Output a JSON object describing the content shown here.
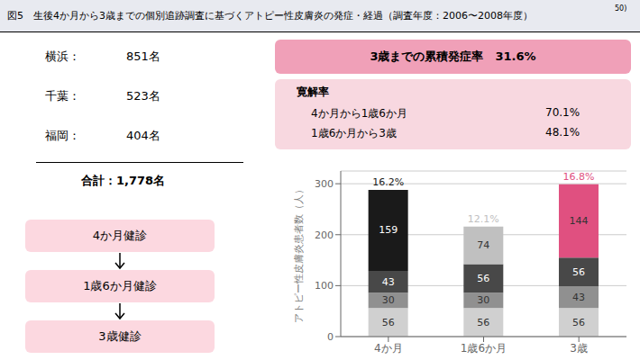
{
  "chart_data": {
    "type": "bar",
    "stacked": true,
    "data_labels": true,
    "grid": true,
    "title": "図5　生後4か月から3歳までの個別追跡調査に基づくアトピー性皮膚炎の発症・経過（調査年度：2006〜2008年度）",
    "y_label": "アトピー性皮膚炎患者数（人）",
    "categories": [
      "4か月",
      "1歳6か月",
      "3歳"
    ],
    "series": [
      {
        "values": [
          56,
          56,
          56
        ],
        "color": "#d0d0d0"
      },
      {
        "values": [
          30,
          30,
          43
        ],
        "color": "#909090"
      },
      {
        "values": [
          43,
          56,
          56
        ],
        "color": "#484848"
      },
      {
        "values": [
          159,
          74,
          144
        ],
        "colors": [
          "#1a1a1a",
          "#c0c0c0",
          "#e05080"
        ]
      }
    ],
    "ylim": [
      0,
      325
    ],
    "yticks": [
      0,
      100,
      200,
      300
    ],
    "annotations": {
      "title_note": "50)",
      "title_bar_color": "#e8eaf0",
      "bar_tops": [
        "16.2%",
        "12.1%",
        "16.8%"
      ],
      "stats": [
        [
          "横浜：",
          "851名"
        ],
        [
          "千葉：",
          "523名"
        ],
        [
          "福岡：",
          "404名"
        ]
      ],
      "stats_total": "合計：1,778名",
      "flow": {
        "labels": [
          "4か月健診",
          "1歳6か月健診",
          "3歳健診"
        ],
        "color": "#fcd8e0"
      },
      "box1": {
        "text": "3歳までの累積発症率　31.6%",
        "color": "#f0a0b8"
      },
      "box2": {
        "title": "寛解率",
        "rows": [
          [
            "4か月から1歳6か月",
            "70.1%"
          ],
          [
            "1歳6か月から3歳",
            "48.1%"
          ]
        ],
        "color": "#f8d8e0"
      }
    }
  }
}
